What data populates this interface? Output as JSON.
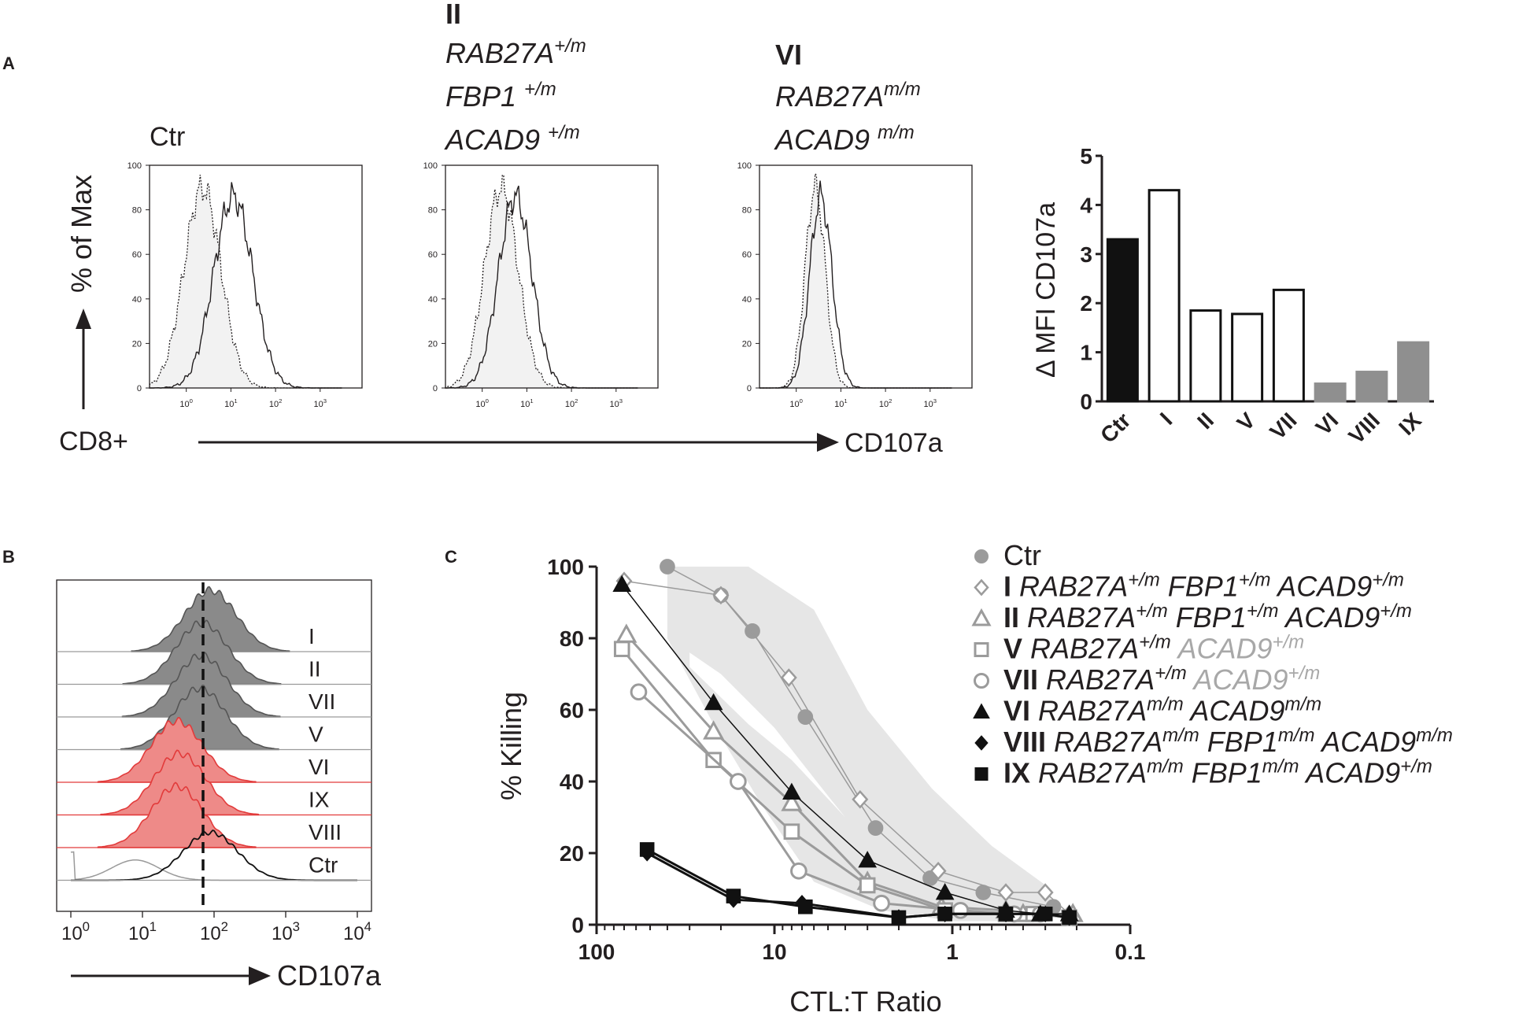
{
  "panel_labels": {
    "a": "A",
    "b": "B",
    "c": "C"
  },
  "panel_a": {
    "y_axis_label": "% of Max",
    "x_axis_left": "CD8+",
    "x_axis_right": "CD107a",
    "y_ticks": [
      "0",
      "20",
      "40",
      "60",
      "80",
      "100"
    ],
    "x_ticks": [
      "0",
      "1",
      "2",
      "3"
    ],
    "x_tick_base": "10",
    "histograms": [
      {
        "title_lines": [
          {
            "text": "Ctr",
            "style": "normal"
          }
        ]
      },
      {
        "title_lines": [
          {
            "text": "II",
            "style": "bold"
          },
          {
            "text": "RAB27A",
            "sup": "+/m",
            "style": "italic"
          },
          {
            "text": "FBP1 ",
            "sup": "+/m",
            "style": "italic"
          },
          {
            "text": "ACAD9 ",
            "sup": "+/m",
            "style": "italic"
          }
        ]
      },
      {
        "title_lines": [
          {
            "text": "VI",
            "style": "bold"
          },
          {
            "text": "RAB27A",
            "sup": "m/m",
            "style": "italic"
          },
          {
            "text": "ACAD9 ",
            "sup": "m/m",
            "style": "italic"
          }
        ]
      }
    ]
  },
  "panel_b": {
    "x_axis_label": "CD107a",
    "x_ticks": [
      "0",
      "1",
      "2",
      "3",
      "4"
    ],
    "x_tick_base": "10",
    "rows": [
      "I",
      "II",
      "VII",
      "V",
      "VI",
      "IX",
      "VIII",
      "Ctr"
    ]
  },
  "chart_data": [
    {
      "type": "bar",
      "title": "",
      "ylabel": "Δ MFI CD107a",
      "xlabel": "",
      "ylim": [
        0,
        5
      ],
      "yticks": [
        "0",
        "1",
        "2",
        "3",
        "4",
        "5"
      ],
      "categories": [
        "Ctr",
        "I",
        "II",
        "V",
        "VII",
        "VI",
        "VIII",
        "IX"
      ],
      "values": [
        3.3,
        4.3,
        1.85,
        1.78,
        2.27,
        0.36,
        0.6,
        1.2
      ],
      "bar_styles": [
        "black",
        "white",
        "white",
        "white",
        "white",
        "gray",
        "gray",
        "gray"
      ],
      "colors": {
        "black": "#111111",
        "white": "#ffffff",
        "gray": "#8f8f8f"
      }
    },
    {
      "type": "line",
      "title": "",
      "xlabel": "CTL:T Ratio",
      "ylabel": "% Killing",
      "x_scale": "log",
      "x_reversed": true,
      "xlim": [
        100,
        0.1
      ],
      "ylim": [
        0,
        100
      ],
      "xticks": [
        "100",
        "10",
        "1",
        "0.1"
      ],
      "yticks": [
        "0",
        "20",
        "40",
        "60",
        "80",
        "100"
      ],
      "series": [
        {
          "name": "Ctr",
          "style": "gray-circle-filled",
          "x": [
            40,
            20,
            13.3,
            6.7,
            2.7,
            1.33,
            0.67,
            0.27
          ],
          "y": [
            100,
            92,
            82,
            58,
            27,
            13,
            9,
            5
          ]
        },
        {
          "name": "I",
          "genotype": "RAB27A+/m FBP1+/m ACAD9+/m",
          "style": "gray-diamond-open",
          "x": [
            70,
            20,
            8.3,
            3.3,
            1.2,
            0.5,
            0.3,
            0.22
          ],
          "y": [
            96,
            92,
            69,
            35,
            15,
            9,
            9,
            3
          ]
        },
        {
          "name": "II",
          "genotype": "RAB27A+/m FBP1+/m ACAD9+/m",
          "style": "gray-triangle-open",
          "x": [
            68,
            22,
            8,
            3,
            1.15,
            0.5,
            0.4,
            0.21
          ],
          "y": [
            81,
            54,
            34,
            12,
            5,
            4,
            3,
            3
          ]
        },
        {
          "name": "V",
          "genotype": "RAB27A+/m ACAD9+/m",
          "style": "gray-square-open",
          "x": [
            72,
            22,
            8,
            3,
            1.1,
            0.5,
            0.35,
            0.22
          ],
          "y": [
            77,
            46,
            26,
            11,
            4,
            3,
            3,
            2
          ]
        },
        {
          "name": "VII",
          "genotype": "RAB27A+/m ACAD9+/m",
          "style": "gray-circle-open",
          "x": [
            58,
            16,
            7.3,
            2.5,
            0.9,
            0.45,
            0.32,
            0.22
          ],
          "y": [
            65,
            40,
            15,
            6,
            4,
            3,
            3,
            2
          ]
        },
        {
          "name": "VI",
          "genotype": "RAB27Am/m ACAD9m/m",
          "style": "black-triangle-filled",
          "x": [
            72,
            22,
            8,
            3,
            1.1,
            0.5,
            0.32,
            0.22
          ],
          "y": [
            95,
            62,
            37,
            18,
            9,
            4,
            3,
            3
          ]
        },
        {
          "name": "VIII",
          "genotype": "RAB27Am/m FBP1m/m ACAD9m/m",
          "style": "black-diamond-filled",
          "x": [
            52,
            17,
            7,
            2,
            1.1,
            0.5,
            0.3,
            0.22
          ],
          "y": [
            20,
            7,
            6,
            2,
            3,
            3,
            3,
            2
          ]
        },
        {
          "name": "IX",
          "genotype": "RAB27Am/m FBP1m/m ACAD9+/m",
          "style": "black-square-filled",
          "x": [
            52,
            17,
            6.7,
            2,
            1.1,
            0.5,
            0.3,
            0.22
          ],
          "y": [
            21,
            8,
            5,
            2,
            3,
            3,
            3,
            2
          ]
        }
      ]
    }
  ],
  "legend_c": [
    {
      "roman": "",
      "parts": [
        {
          "t": "Ctr",
          "c": "dark"
        }
      ],
      "marker": "gray-circle-filled"
    },
    {
      "roman": "I",
      "parts": [
        {
          "t": "RAB27A",
          "s": "+/m",
          "c": "dark"
        },
        {
          "t": "FBP1",
          "s": "+/m",
          "c": "dark"
        },
        {
          "t": "ACAD9",
          "s": "+/m",
          "c": "dark"
        }
      ],
      "marker": "gray-diamond-open"
    },
    {
      "roman": "II",
      "parts": [
        {
          "t": "RAB27A",
          "s": "+/m",
          "c": "dark"
        },
        {
          "t": "FBP1",
          "s": "+/m",
          "c": "dark"
        },
        {
          "t": "ACAD9",
          "s": "+/m",
          "c": "dark"
        }
      ],
      "marker": "gray-triangle-open"
    },
    {
      "roman": "V",
      "parts": [
        {
          "t": "RAB27A",
          "s": "+/m",
          "c": "dark"
        },
        {
          "t": "ACAD9",
          "s": "+/m",
          "c": "light"
        }
      ],
      "marker": "gray-square-open"
    },
    {
      "roman": "VII",
      "parts": [
        {
          "t": "RAB27A",
          "s": "+/m",
          "c": "dark"
        },
        {
          "t": "ACAD9",
          "s": "+/m",
          "c": "light"
        }
      ],
      "marker": "gray-circle-open"
    },
    {
      "roman": "VI",
      "parts": [
        {
          "t": "RAB27A",
          "s": "m/m",
          "c": "dark"
        },
        {
          "t": "ACAD9",
          "s": "m/m",
          "c": "dark"
        }
      ],
      "marker": "black-triangle-filled"
    },
    {
      "roman": "VIII",
      "parts": [
        {
          "t": "RAB27A",
          "s": "m/m",
          "c": "dark"
        },
        {
          "t": "FBP1",
          "s": "m/m",
          "c": "dark"
        },
        {
          "t": "ACAD9",
          "s": "m/m",
          "c": "dark"
        }
      ],
      "marker": "black-diamond-filled"
    },
    {
      "roman": "IX",
      "parts": [
        {
          "t": "RAB27A",
          "s": "m/m",
          "c": "dark"
        },
        {
          "t": "FBP1",
          "s": "m/m",
          "c": "dark"
        },
        {
          "t": "ACAD9",
          "s": "+/m",
          "c": "dark"
        }
      ],
      "marker": "black-square-filled"
    }
  ],
  "colors": {
    "ink": "#231f20",
    "gray": "#9b9b9b",
    "light_gray": "#a8a8a8",
    "band": "#e6e6e6",
    "red": "#e23b3b",
    "red_fill": "#ee8a88",
    "hist_gray": "#8a8a8a"
  }
}
